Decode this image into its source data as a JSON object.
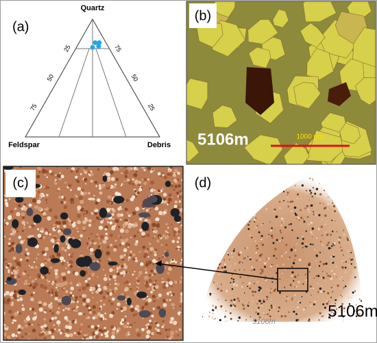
{
  "panels": {
    "a": {
      "label": "(a)",
      "ternary": {
        "top": "Quartz",
        "left": "Feldspar",
        "right": "Debris",
        "left_ticks": [
          25,
          50,
          75
        ],
        "right_ticks": [
          75,
          50,
          25
        ],
        "points": [
          {
            "quartz": 80,
            "feldspar": 8,
            "debris": 12
          },
          {
            "quartz": 80,
            "feldspar": 5,
            "debris": 15
          },
          {
            "quartz": 76,
            "feldspar": 12,
            "debris": 12
          },
          {
            "quartz": 77,
            "feldspar": 7,
            "debris": 16
          }
        ]
      }
    },
    "b": {
      "label": "(b)",
      "depth": "5106m",
      "scale": "1000 μm"
    },
    "c": {
      "label": "(c)"
    },
    "d": {
      "label": "(d)",
      "depth": "5106m",
      "handwriting": "5106m"
    }
  }
}
